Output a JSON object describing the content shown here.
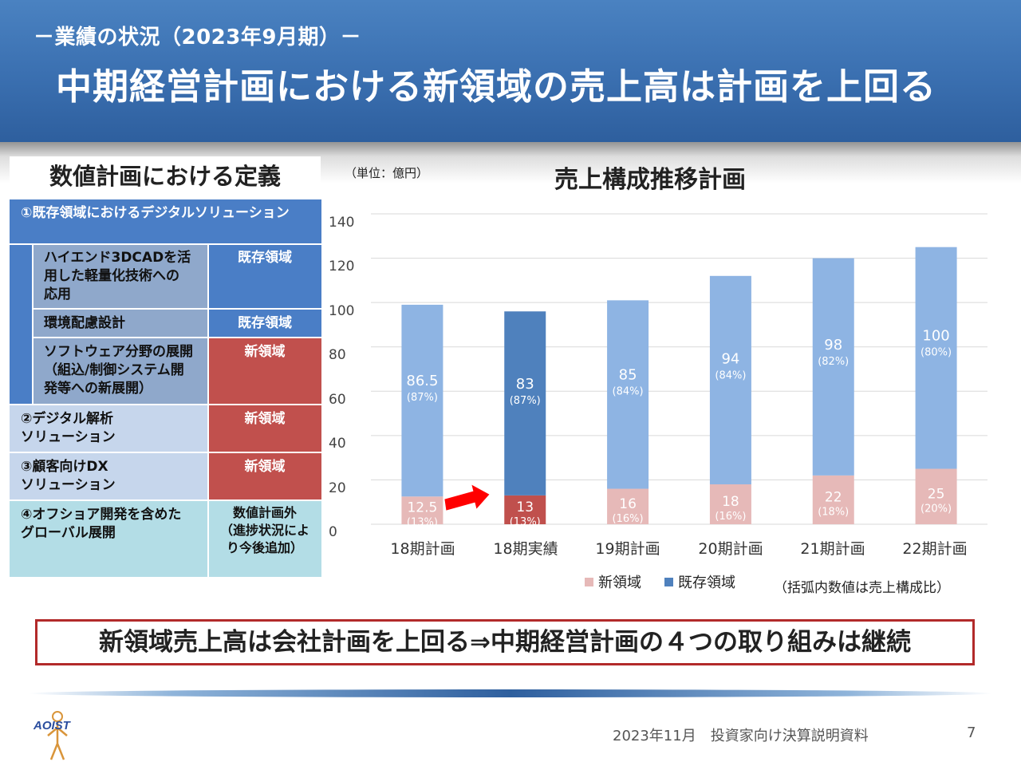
{
  "header": {
    "subtitle": "－業績の状況（2023年9月期）－",
    "title": "中期経営計画における新領域の売上高は計画を上回る"
  },
  "definitions": {
    "title": "数値計画における定義",
    "item1": "①既存領域におけるデジタルソリューション",
    "sub1": [
      "ハイエンド3DCADを活",
      "用した軽量化技術への",
      "応用"
    ],
    "sub1_tag": "既存領域",
    "sub2": "環境配慮設計",
    "sub2_tag": "既存領域",
    "sub3": [
      "ソフトウェア分野の展開",
      "（組込/制御システム開",
      "発等への新展開）"
    ],
    "sub3_tag": "新領域",
    "item2": [
      "②デジタル解析",
      "ソリューション"
    ],
    "item2_tag": "新領域",
    "item3": [
      "③顧客向けDX",
      "ソリューション"
    ],
    "item3_tag": "新領域",
    "item4": [
      "④オフショア開発を含めた",
      "グローバル展開"
    ],
    "item4_tag": [
      "数値計画外",
      "（進捗状況によ",
      "り今後追加）"
    ]
  },
  "chart_data": {
    "type": "bar",
    "stacked": true,
    "title": "売上構成推移計画",
    "unit_label": "（単位：億円）",
    "categories": [
      "18期計画",
      "18期実績",
      "19期計画",
      "20期計画",
      "21期計画",
      "22期計画"
    ],
    "series": [
      {
        "name": "新領域",
        "values": [
          12.5,
          13,
          16,
          18,
          22,
          25
        ],
        "labels": [
          "12.5",
          "13",
          "16",
          "18",
          "22",
          "25"
        ],
        "shares": [
          "(13%)",
          "(13%)",
          "(16%)",
          "(16%)",
          "(18%)",
          "(20%)"
        ]
      },
      {
        "name": "既存領域",
        "values": [
          86.5,
          83,
          85,
          94,
          98,
          100
        ],
        "labels": [
          "86.5",
          "83",
          "85",
          "94",
          "98",
          "100"
        ],
        "shares": [
          "(87%)",
          "(87%)",
          "(84%)",
          "(84%)",
          "(82%)",
          "(80%)"
        ]
      }
    ],
    "yticks": [
      "0",
      "20",
      "40",
      "60",
      "80",
      "100",
      "120",
      "140"
    ],
    "ylim": [
      0,
      140
    ],
    "grid": true,
    "legend_position": "bottom",
    "note": "（括弧内数値は売上構成比）",
    "colors": {
      "plan_new": "#e6b9b8",
      "plan_existing": "#8eb4e3",
      "actual_new": "#c0504d",
      "actual_existing": "#4f81bd",
      "arrow": "#ff0000"
    }
  },
  "conclusion": "新領域売上高は会社計画を上回る⇒中期経営計画の４つの取り組みは継続",
  "footer": {
    "logo_text": "AOIST",
    "text": "2023年11月　投資家向け決算説明資料",
    "page": "7"
  }
}
